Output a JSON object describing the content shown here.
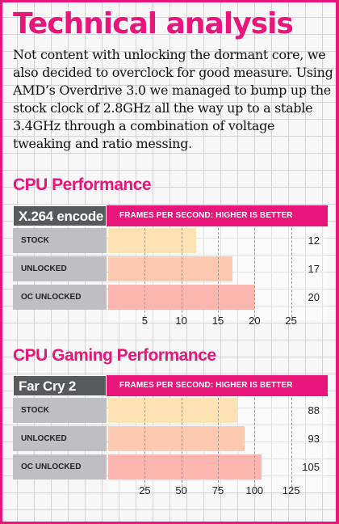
{
  "title": "Technical analysis",
  "intro": "Not content with unlocking the dormant core, we also decided to overclock for good measure. Using AMD’s Overdrive 3.0 we managed to bump up the stock clock of 2.8GHz all the way up to a stable 3.4GHz through a combination of voltage tweaking and ratio messing.",
  "colors": {
    "accent": "#e8157b",
    "header_dark": "#58595b",
    "label_grey": "#bfbfc1",
    "bar_stock": "#fde3b3",
    "bar_unlocked": "#fdc9b0",
    "bar_oc": "#fbb6b0"
  },
  "chart_data": [
    {
      "type": "bar",
      "orientation": "horizontal",
      "section_title": "CPU Performance",
      "title": "X.264 encode",
      "subtitle": "FRAMES PER SECOND: HIGHER IS BETTER",
      "categories": [
        "STOCK",
        "UNLOCKED",
        "OC UNLOCKED"
      ],
      "values": [
        12,
        17,
        20
      ],
      "xlim": [
        0,
        30
      ],
      "ticks": [
        5,
        10,
        15,
        20,
        25
      ],
      "grid": true
    },
    {
      "type": "bar",
      "orientation": "horizontal",
      "section_title": "CPU Gaming Performance",
      "title": "Far Cry 2",
      "subtitle": "FRAMES PER SECOND: HIGHER IS BETTER",
      "categories": [
        "STOCK",
        "UNLOCKED",
        "OC UNLOCKED"
      ],
      "values": [
        88,
        93,
        105
      ],
      "xlim": [
        0,
        150
      ],
      "ticks": [
        25,
        50,
        75,
        100,
        125
      ],
      "grid": true
    }
  ]
}
